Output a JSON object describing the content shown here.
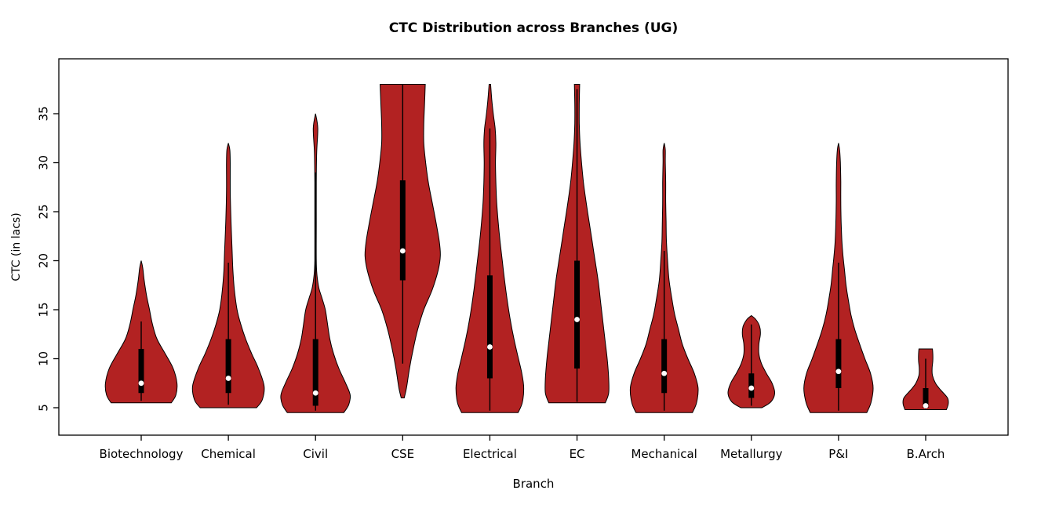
{
  "title": "CTC Distribution across Branches (UG)",
  "chart_data": {
    "type": "violin",
    "title": "CTC Distribution across Branches (UG)",
    "xlabel": "Branch",
    "ylabel": "CTC (in lacs)",
    "y_ticks": [
      5,
      10,
      15,
      20,
      25,
      30,
      35
    ],
    "ylim": [
      2,
      40
    ],
    "grid": false,
    "legend": "none",
    "violin_fill": "#B22222",
    "violin_stroke": "#000000",
    "box_color": "#000000",
    "median_dot_color": "#FFFFFF",
    "categories": [
      "Biotechnology",
      "Chemical",
      "Civil",
      "CSE",
      "Electrical",
      "EC",
      "Mechanical",
      "Metallurgy",
      "P&I",
      "B.Arch"
    ],
    "series": [
      {
        "branch": "Biotechnology",
        "median": 7.5,
        "q1": 6.5,
        "q3": 11,
        "whisker_low": 5.7,
        "whisker_high": 13.8,
        "min": 5.5,
        "max": 20,
        "shape": [
          [
            5.5,
            0.8
          ],
          [
            6.3,
            0.92
          ],
          [
            7.5,
            0.95
          ],
          [
            9,
            0.85
          ],
          [
            10.5,
            0.64
          ],
          [
            12,
            0.42
          ],
          [
            13.5,
            0.3
          ],
          [
            15,
            0.22
          ],
          [
            16.5,
            0.14
          ],
          [
            18,
            0.08
          ],
          [
            19.3,
            0.04
          ],
          [
            20,
            0
          ]
        ]
      },
      {
        "branch": "Chemical",
        "median": 8,
        "q1": 6.5,
        "q3": 12,
        "whisker_low": 5.3,
        "whisker_high": 19.8,
        "min": 5,
        "max": 32,
        "shape": [
          [
            5,
            0.75
          ],
          [
            5.8,
            0.9
          ],
          [
            7.2,
            0.95
          ],
          [
            9,
            0.8
          ],
          [
            10.5,
            0.62
          ],
          [
            12,
            0.46
          ],
          [
            13.5,
            0.33
          ],
          [
            15,
            0.23
          ],
          [
            17,
            0.16
          ],
          [
            19,
            0.12
          ],
          [
            21,
            0.1
          ],
          [
            24,
            0.07
          ],
          [
            27,
            0.05
          ],
          [
            30,
            0.05
          ],
          [
            31.3,
            0.04
          ],
          [
            32,
            0
          ]
        ]
      },
      {
        "branch": "Civil",
        "median": 6.5,
        "q1": 5.2,
        "q3": 12,
        "whisker_low": 4.7,
        "whisker_high": 29,
        "min": 4.5,
        "max": 35,
        "shape": [
          [
            4.5,
            0.75
          ],
          [
            5.3,
            0.88
          ],
          [
            6.3,
            0.92
          ],
          [
            7.5,
            0.8
          ],
          [
            9,
            0.62
          ],
          [
            10.5,
            0.48
          ],
          [
            12,
            0.38
          ],
          [
            13.5,
            0.32
          ],
          [
            15,
            0.26
          ],
          [
            16.2,
            0.17
          ],
          [
            17.2,
            0.09
          ],
          [
            18.5,
            0.04
          ],
          [
            20,
            0.02
          ],
          [
            24,
            0.02
          ],
          [
            28,
            0.02
          ],
          [
            31,
            0.03
          ],
          [
            33.5,
            0.06
          ],
          [
            35,
            0
          ]
        ]
      },
      {
        "branch": "CSE",
        "median": 21,
        "q1": 18,
        "q3": 28.2,
        "whisker_low": 9.5,
        "whisker_high": 38,
        "min": 6,
        "max": 38,
        "shape": [
          [
            6,
            0.04
          ],
          [
            7,
            0.1
          ],
          [
            9,
            0.18
          ],
          [
            11,
            0.28
          ],
          [
            13,
            0.4
          ],
          [
            15,
            0.56
          ],
          [
            17,
            0.78
          ],
          [
            19,
            0.94
          ],
          [
            20.5,
            1.0
          ],
          [
            22,
            0.97
          ],
          [
            24,
            0.88
          ],
          [
            26,
            0.78
          ],
          [
            28,
            0.68
          ],
          [
            30,
            0.61
          ],
          [
            32,
            0.56
          ],
          [
            34,
            0.56
          ],
          [
            36,
            0.58
          ],
          [
            38,
            0.6
          ]
        ]
      },
      {
        "branch": "Electrical",
        "median": 11.2,
        "q1": 8,
        "q3": 18.5,
        "whisker_low": 4.7,
        "whisker_high": 33.5,
        "min": 4.5,
        "max": 38,
        "shape": [
          [
            4.5,
            0.75
          ],
          [
            5.5,
            0.86
          ],
          [
            7,
            0.9
          ],
          [
            8.5,
            0.85
          ],
          [
            10,
            0.76
          ],
          [
            12,
            0.64
          ],
          [
            14,
            0.54
          ],
          [
            16,
            0.46
          ],
          [
            18,
            0.39
          ],
          [
            20,
            0.33
          ],
          [
            22,
            0.27
          ],
          [
            24,
            0.22
          ],
          [
            26,
            0.18
          ],
          [
            28,
            0.16
          ],
          [
            30,
            0.15
          ],
          [
            32,
            0.16
          ],
          [
            33.5,
            0.14
          ],
          [
            35,
            0.09
          ],
          [
            36.5,
            0.05
          ],
          [
            38,
            0.02
          ]
        ]
      },
      {
        "branch": "EC",
        "median": 14,
        "q1": 9,
        "q3": 20,
        "whisker_low": 5.6,
        "whisker_high": 37.5,
        "min": 5.5,
        "max": 38,
        "shape": [
          [
            5.5,
            0.75
          ],
          [
            6.5,
            0.84
          ],
          [
            8,
            0.84
          ],
          [
            10,
            0.8
          ],
          [
            12,
            0.74
          ],
          [
            14,
            0.68
          ],
          [
            16,
            0.62
          ],
          [
            18,
            0.56
          ],
          [
            20,
            0.48
          ],
          [
            22,
            0.4
          ],
          [
            24,
            0.32
          ],
          [
            26,
            0.24
          ],
          [
            28,
            0.17
          ],
          [
            30,
            0.12
          ],
          [
            32,
            0.08
          ],
          [
            34,
            0.06
          ],
          [
            36,
            0.06
          ],
          [
            38,
            0.07
          ]
        ]
      },
      {
        "branch": "Mechanical",
        "median": 8.5,
        "q1": 6.5,
        "q3": 12,
        "whisker_low": 4.7,
        "whisker_high": 21,
        "min": 4.5,
        "max": 32,
        "shape": [
          [
            4.5,
            0.75
          ],
          [
            5.5,
            0.86
          ],
          [
            7,
            0.9
          ],
          [
            8.5,
            0.8
          ],
          [
            10,
            0.63
          ],
          [
            11.5,
            0.48
          ],
          [
            13,
            0.38
          ],
          [
            14.5,
            0.28
          ],
          [
            16,
            0.21
          ],
          [
            18,
            0.13
          ],
          [
            20,
            0.09
          ],
          [
            22,
            0.06
          ],
          [
            24,
            0.05
          ],
          [
            26,
            0.04
          ],
          [
            28,
            0.04
          ],
          [
            30,
            0.03
          ],
          [
            31.3,
            0.03
          ],
          [
            32,
            0
          ]
        ]
      },
      {
        "branch": "Metallurgy",
        "median": 7,
        "q1": 6,
        "q3": 8.5,
        "whisker_low": 5.2,
        "whisker_high": 13.5,
        "min": 5,
        "max": 14.4,
        "shape": [
          [
            5,
            0.28
          ],
          [
            5.6,
            0.52
          ],
          [
            6.5,
            0.62
          ],
          [
            7.5,
            0.55
          ],
          [
            8.5,
            0.4
          ],
          [
            9.5,
            0.27
          ],
          [
            10.5,
            0.2
          ],
          [
            11.5,
            0.2
          ],
          [
            12.5,
            0.24
          ],
          [
            13.3,
            0.22
          ],
          [
            14,
            0.12
          ],
          [
            14.4,
            0
          ]
        ]
      },
      {
        "branch": "P&I",
        "median": 8.7,
        "q1": 7,
        "q3": 12,
        "whisker_low": 4.7,
        "whisker_high": 19.8,
        "min": 4.5,
        "max": 32,
        "shape": [
          [
            4.5,
            0.75
          ],
          [
            5.5,
            0.86
          ],
          [
            7,
            0.92
          ],
          [
            8.5,
            0.85
          ],
          [
            10,
            0.7
          ],
          [
            11.5,
            0.56
          ],
          [
            13,
            0.43
          ],
          [
            14.5,
            0.33
          ],
          [
            16,
            0.26
          ],
          [
            17.5,
            0.2
          ],
          [
            19,
            0.16
          ],
          [
            20.5,
            0.12
          ],
          [
            22,
            0.09
          ],
          [
            24,
            0.07
          ],
          [
            26,
            0.06
          ],
          [
            28,
            0.06
          ],
          [
            30,
            0.05
          ],
          [
            31.3,
            0.03
          ],
          [
            32,
            0
          ]
        ]
      },
      {
        "branch": "B.Arch",
        "median": 5.2,
        "q1": 5,
        "q3": 7,
        "whisker_low": 4.8,
        "whisker_high": 10,
        "min": 4.8,
        "max": 11,
        "shape": [
          [
            4.8,
            0.55
          ],
          [
            5.4,
            0.6
          ],
          [
            6,
            0.58
          ],
          [
            6.8,
            0.4
          ],
          [
            7.5,
            0.26
          ],
          [
            8.3,
            0.18
          ],
          [
            9,
            0.17
          ],
          [
            9.8,
            0.19
          ],
          [
            10.5,
            0.19
          ],
          [
            11,
            0.18
          ]
        ]
      }
    ]
  }
}
